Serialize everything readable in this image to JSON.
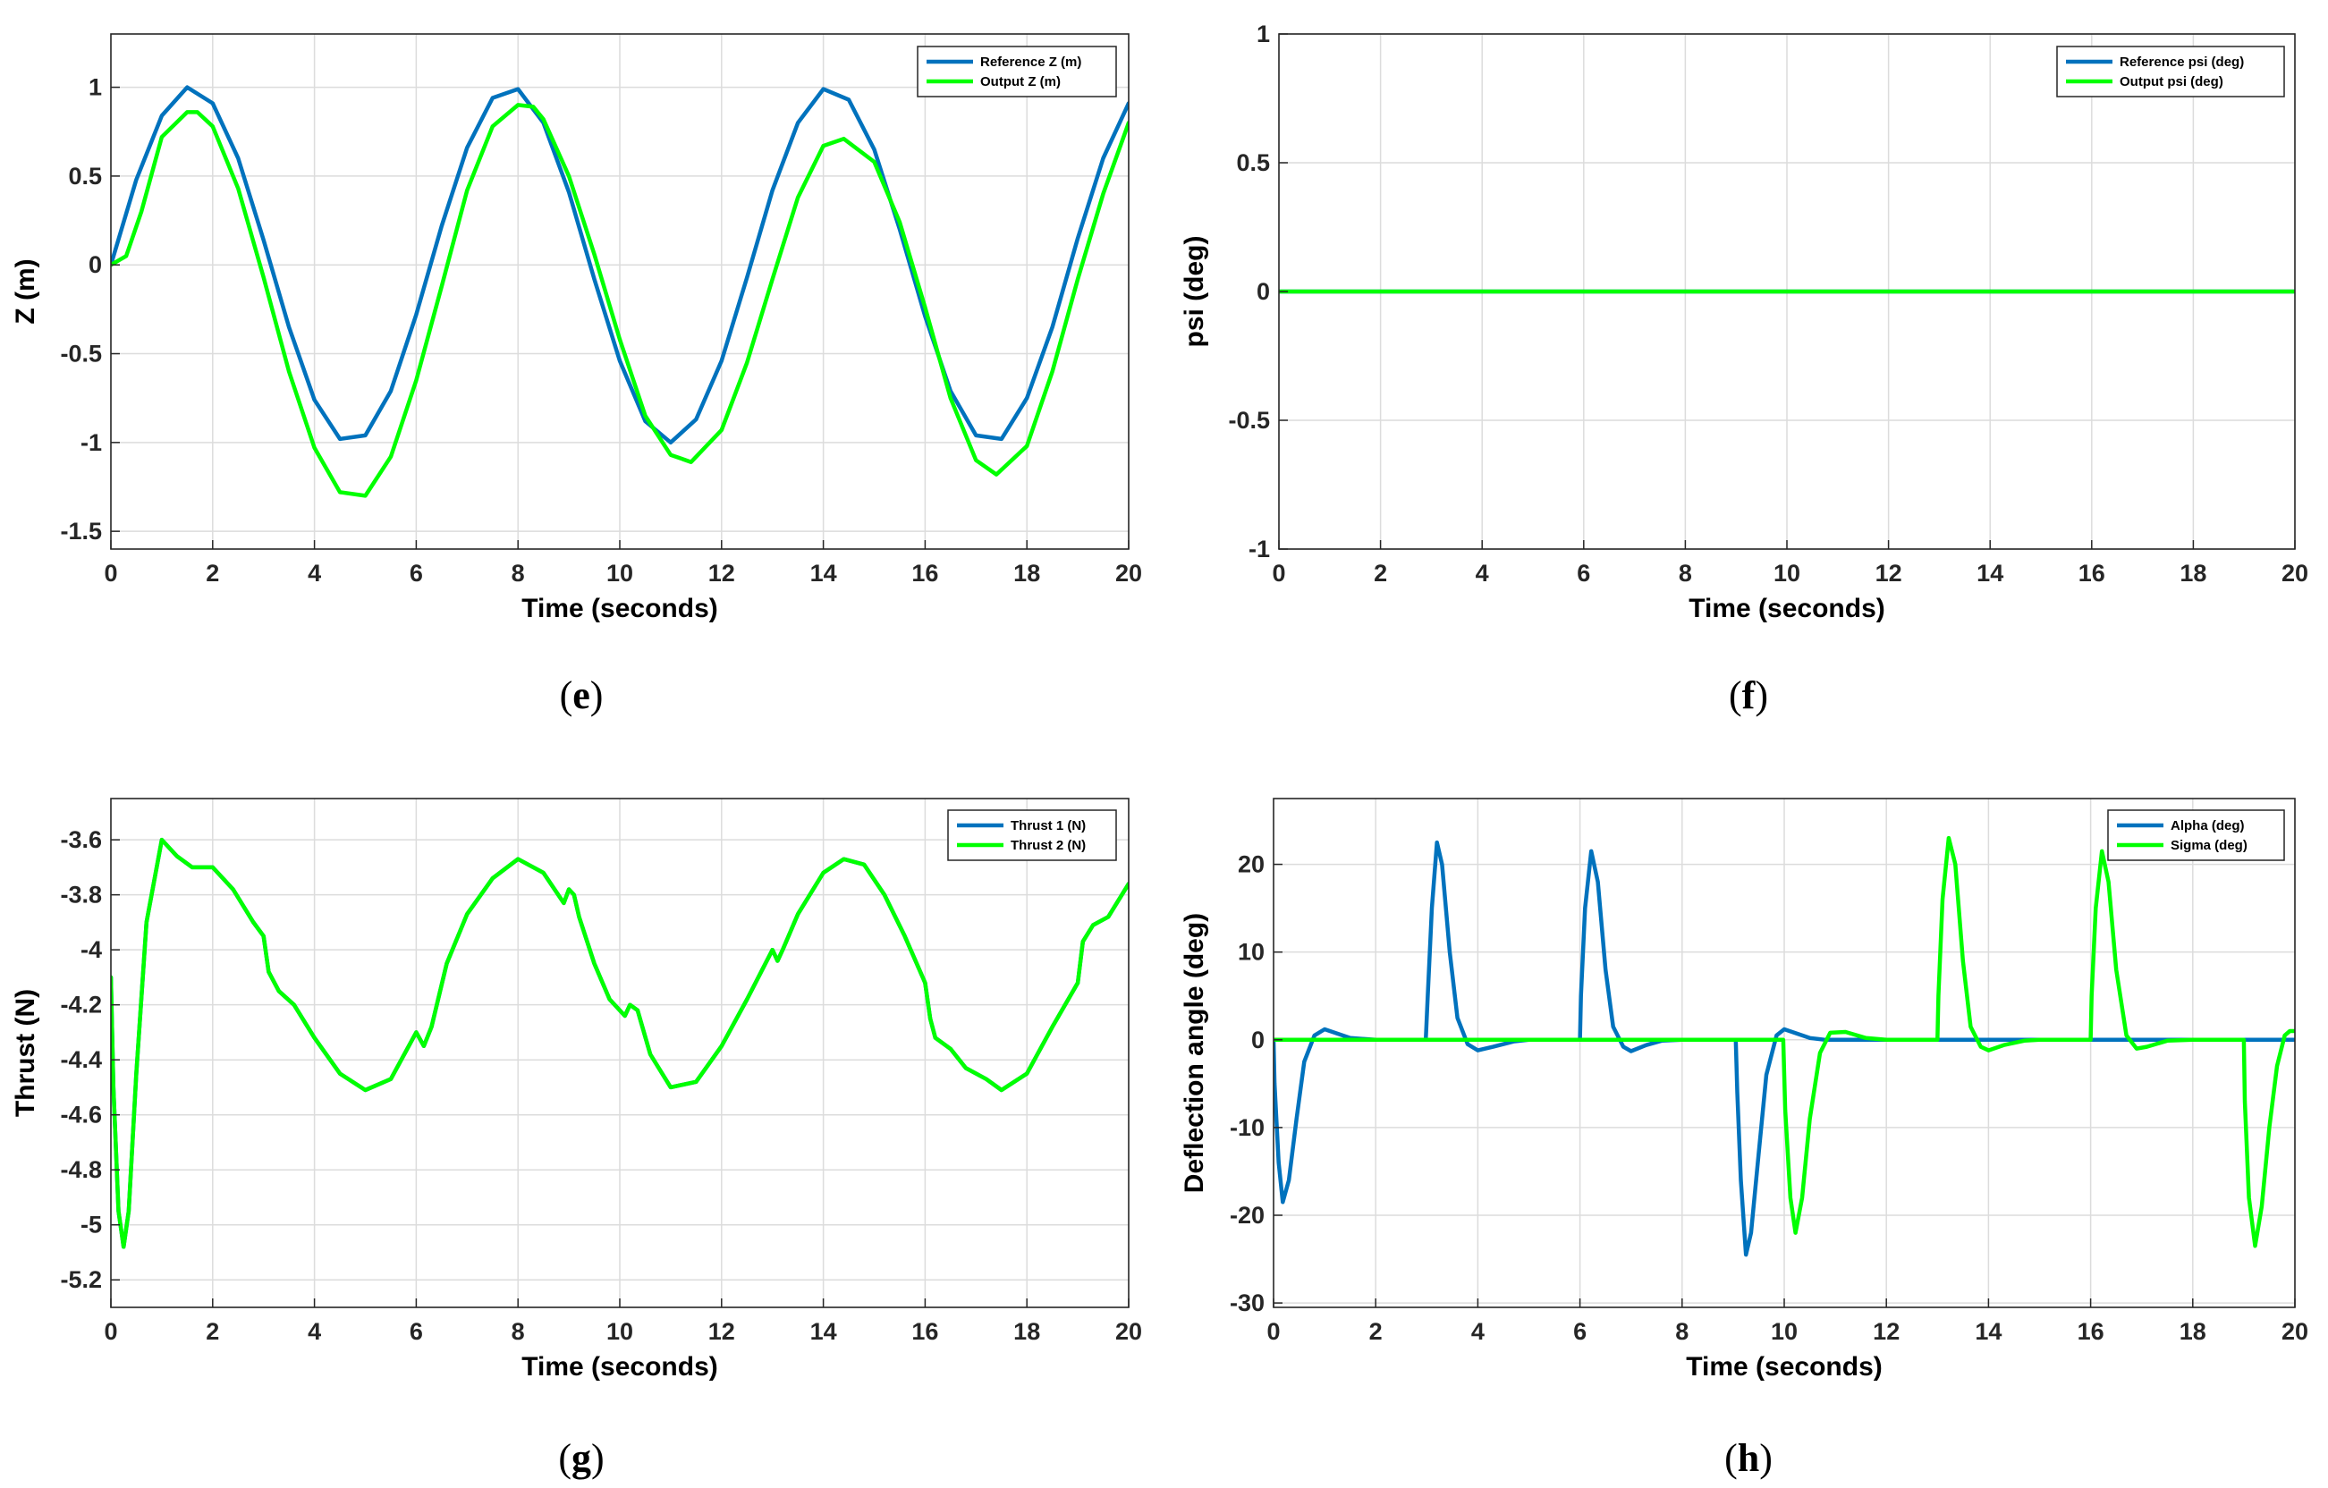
{
  "colors": {
    "blue": "#0072BD",
    "green": "#00FF00",
    "grid": "#DCDCDC",
    "axis": "#262626"
  },
  "chart_data": [
    {
      "id": "e",
      "type": "line",
      "caption": "e",
      "xlabel": "Time (seconds)",
      "ylabel": "Z (m)",
      "xlim": [
        0,
        20
      ],
      "ylim": [
        -1.6,
        1.3
      ],
      "xticks": [
        0,
        2,
        4,
        6,
        8,
        10,
        12,
        14,
        16,
        18,
        20
      ],
      "xtick_labels": [
        "0",
        "2",
        "4",
        "6",
        "8",
        "10",
        "12",
        "14",
        "16",
        "18",
        "20"
      ],
      "yticks": [
        -1.5,
        -1,
        -0.5,
        0,
        0.5,
        1
      ],
      "ytick_labels": [
        "-1.5",
        "-1",
        "-0.5",
        "0",
        "0.5",
        "1"
      ],
      "legend_position": "top-right",
      "series": [
        {
          "name": "Reference Z (m)",
          "color": "#0072BD",
          "x": [
            0,
            0.5,
            1,
            1.5,
            2,
            2.5,
            3,
            3.5,
            4,
            4.5,
            5,
            5.5,
            6,
            6.5,
            7,
            7.5,
            8,
            8.5,
            9,
            9.5,
            10,
            10.5,
            11,
            11.5,
            12,
            12.5,
            13,
            13.5,
            14,
            14.5,
            15,
            15.5,
            16,
            16.5,
            17,
            17.5,
            18,
            18.5,
            19,
            19.5,
            20
          ],
          "y": [
            0,
            0.48,
            0.84,
            1.0,
            0.91,
            0.6,
            0.14,
            -0.35,
            -0.76,
            -0.98,
            -0.96,
            -0.71,
            -0.28,
            0.22,
            0.66,
            0.94,
            0.99,
            0.8,
            0.41,
            -0.08,
            -0.54,
            -0.88,
            -1.0,
            -0.87,
            -0.54,
            -0.07,
            0.42,
            0.8,
            0.99,
            0.93,
            0.65,
            0.2,
            -0.29,
            -0.71,
            -0.96,
            -0.98,
            -0.75,
            -0.35,
            0.15,
            0.6,
            0.91
          ]
        },
        {
          "name": "Output Z (m)",
          "color": "#00FF00",
          "x": [
            0,
            0.3,
            0.6,
            1,
            1.5,
            1.7,
            2,
            2.5,
            3,
            3.5,
            4,
            4.5,
            5,
            5.5,
            6,
            6.5,
            7,
            7.5,
            8,
            8.3,
            8.5,
            9,
            9.5,
            10,
            10.5,
            11,
            11.4,
            12,
            12.5,
            13,
            13.5,
            14,
            14.4,
            15,
            15.5,
            16,
            16.5,
            17,
            17.4,
            18,
            18.5,
            19,
            19.5,
            20
          ],
          "y": [
            0,
            0.05,
            0.3,
            0.72,
            0.86,
            0.86,
            0.78,
            0.43,
            -0.07,
            -0.6,
            -1.03,
            -1.28,
            -1.3,
            -1.08,
            -0.65,
            -0.12,
            0.42,
            0.78,
            0.9,
            0.89,
            0.82,
            0.5,
            0.06,
            -0.42,
            -0.85,
            -1.07,
            -1.11,
            -0.93,
            -0.55,
            -0.08,
            0.38,
            0.67,
            0.71,
            0.58,
            0.24,
            -0.24,
            -0.75,
            -1.1,
            -1.18,
            -1.02,
            -0.6,
            -0.08,
            0.4,
            0.8
          ]
        }
      ]
    },
    {
      "id": "f",
      "type": "line",
      "caption": "f",
      "xlabel": "Time (seconds)",
      "ylabel": "psi (deg)",
      "xlim": [
        0,
        20
      ],
      "ylim": [
        -1,
        1
      ],
      "xticks": [
        0,
        2,
        4,
        6,
        8,
        10,
        12,
        14,
        16,
        18,
        20
      ],
      "xtick_labels": [
        "0",
        "2",
        "4",
        "6",
        "8",
        "10",
        "12",
        "14",
        "16",
        "18",
        "20"
      ],
      "yticks": [
        -1,
        -0.5,
        0,
        0.5,
        1
      ],
      "ytick_labels": [
        "-1",
        "-0.5",
        "0",
        "0.5",
        "1"
      ],
      "legend_position": "top-right",
      "series": [
        {
          "name": "Reference psi (deg)",
          "color": "#0072BD",
          "x": [
            0,
            20
          ],
          "y": [
            0,
            0
          ]
        },
        {
          "name": "Output psi (deg)",
          "color": "#00FF00",
          "x": [
            0,
            20
          ],
          "y": [
            0,
            0
          ]
        }
      ]
    },
    {
      "id": "g",
      "type": "line",
      "caption": "g",
      "xlabel": "Time (seconds)",
      "ylabel": "Thrust (N)",
      "xlim": [
        0,
        20
      ],
      "ylim": [
        -5.3,
        -3.45
      ],
      "xticks": [
        0,
        2,
        4,
        6,
        8,
        10,
        12,
        14,
        16,
        18,
        20
      ],
      "xtick_labels": [
        "0",
        "2",
        "4",
        "6",
        "8",
        "10",
        "12",
        "14",
        "16",
        "18",
        "20"
      ],
      "yticks": [
        -5.2,
        -5,
        -4.8,
        -4.6,
        -4.4,
        -4.2,
        -4,
        -3.8,
        -3.6
      ],
      "ytick_labels": [
        "-5.2",
        "-5",
        "-4.8",
        "-4.6",
        "-4.4",
        "-4.2",
        "-4",
        "-3.8",
        "-3.6"
      ],
      "legend_position": "top-right",
      "series": [
        {
          "name": "Thrust 1 (N)",
          "color": "#0072BD",
          "x": [
            0,
            0.05,
            0.15,
            0.25,
            0.35,
            0.5,
            0.7,
            1,
            1.3,
            1.6,
            2,
            2.4,
            2.8,
            3,
            3.1,
            3.3,
            3.6,
            4,
            4.5,
            5,
            5.5,
            6,
            6.15,
            6.3,
            6.6,
            7,
            7.5,
            8,
            8.5,
            8.9,
            9,
            9.1,
            9.2,
            9.5,
            9.8,
            10.1,
            10.2,
            10.35,
            10.6,
            11,
            11.5,
            12,
            12.5,
            13,
            13.1,
            13.2,
            13.5,
            14,
            14.4,
            14.8,
            15.2,
            15.6,
            16,
            16.1,
            16.2,
            16.5,
            16.8,
            17.2,
            17.5,
            18,
            18.5,
            19,
            19.1,
            19.3,
            19.6,
            20
          ],
          "y": [
            -4.1,
            -4.5,
            -4.95,
            -5.08,
            -4.95,
            -4.45,
            -3.9,
            -3.6,
            -3.66,
            -3.7,
            -3.7,
            -3.78,
            -3.9,
            -3.95,
            -4.08,
            -4.15,
            -4.2,
            -4.32,
            -4.45,
            -4.51,
            -4.47,
            -4.3,
            -4.35,
            -4.28,
            -4.05,
            -3.87,
            -3.74,
            -3.67,
            -3.72,
            -3.83,
            -3.78,
            -3.8,
            -3.88,
            -4.05,
            -4.18,
            -4.24,
            -4.2,
            -4.22,
            -4.38,
            -4.5,
            -4.48,
            -4.35,
            -4.18,
            -4.0,
            -4.04,
            -4.0,
            -3.87,
            -3.72,
            -3.67,
            -3.69,
            -3.8,
            -3.95,
            -4.12,
            -4.25,
            -4.32,
            -4.36,
            -4.43,
            -4.47,
            -4.51,
            -4.45,
            -4.28,
            -4.12,
            -3.97,
            -3.91,
            -3.88,
            -3.76
          ]
        },
        {
          "name": "Thrust 2 (N)",
          "color": "#00FF00",
          "x": [
            0,
            0.05,
            0.15,
            0.25,
            0.35,
            0.5,
            0.7,
            1,
            1.3,
            1.6,
            2,
            2.4,
            2.8,
            3,
            3.1,
            3.3,
            3.6,
            4,
            4.5,
            5,
            5.5,
            6,
            6.15,
            6.3,
            6.6,
            7,
            7.5,
            8,
            8.5,
            8.9,
            9,
            9.1,
            9.2,
            9.5,
            9.8,
            10.1,
            10.2,
            10.35,
            10.6,
            11,
            11.5,
            12,
            12.5,
            13,
            13.1,
            13.2,
            13.5,
            14,
            14.4,
            14.8,
            15.2,
            15.6,
            16,
            16.1,
            16.2,
            16.5,
            16.8,
            17.2,
            17.5,
            18,
            18.5,
            19,
            19.1,
            19.3,
            19.6,
            20
          ],
          "y": [
            -4.1,
            -4.5,
            -4.95,
            -5.08,
            -4.95,
            -4.45,
            -3.9,
            -3.6,
            -3.66,
            -3.7,
            -3.7,
            -3.78,
            -3.9,
            -3.95,
            -4.08,
            -4.15,
            -4.2,
            -4.32,
            -4.45,
            -4.51,
            -4.47,
            -4.3,
            -4.35,
            -4.28,
            -4.05,
            -3.87,
            -3.74,
            -3.67,
            -3.72,
            -3.83,
            -3.78,
            -3.8,
            -3.88,
            -4.05,
            -4.18,
            -4.24,
            -4.2,
            -4.22,
            -4.38,
            -4.5,
            -4.48,
            -4.35,
            -4.18,
            -4.0,
            -4.04,
            -4.0,
            -3.87,
            -3.72,
            -3.67,
            -3.69,
            -3.8,
            -3.95,
            -4.12,
            -4.25,
            -4.32,
            -4.36,
            -4.43,
            -4.47,
            -4.51,
            -4.45,
            -4.28,
            -4.12,
            -3.97,
            -3.91,
            -3.88,
            -3.76
          ]
        }
      ]
    },
    {
      "id": "h",
      "type": "line",
      "caption": "h",
      "xlabel": "Time (seconds)",
      "ylabel": "Deflection angle (deg)",
      "xlim": [
        0,
        20
      ],
      "ylim": [
        -30.5,
        27.5
      ],
      "xticks": [
        0,
        2,
        4,
        6,
        8,
        10,
        12,
        14,
        16,
        18,
        20
      ],
      "xtick_labels": [
        "0",
        "2",
        "4",
        "6",
        "8",
        "10",
        "12",
        "14",
        "16",
        "18",
        "20"
      ],
      "yticks": [
        -30,
        -20,
        -10,
        0,
        10,
        20
      ],
      "ytick_labels": [
        "-30",
        "-20",
        "-10",
        "0",
        "10",
        "20"
      ],
      "legend_position": "top-right",
      "series": [
        {
          "name": "Alpha (deg)",
          "color": "#0072BD",
          "x": [
            0,
            0.02,
            0.1,
            0.18,
            0.3,
            0.45,
            0.6,
            0.8,
            1.0,
            1.2,
            1.5,
            2,
            2.5,
            2.98,
            3.02,
            3.1,
            3.2,
            3.3,
            3.45,
            3.6,
            3.8,
            4.0,
            4.3,
            4.7,
            5,
            5.5,
            6.0,
            6.02,
            6.1,
            6.22,
            6.35,
            6.5,
            6.65,
            6.85,
            7.0,
            7.3,
            7.6,
            8,
            8.5,
            9.05,
            9.08,
            9.15,
            9.25,
            9.35,
            9.5,
            9.65,
            9.85,
            10.0,
            10.2,
            10.5,
            10.8,
            11,
            11.5,
            12,
            20
          ],
          "y": [
            0,
            -5,
            -14,
            -18.5,
            -16,
            -9,
            -2.5,
            0.5,
            1.2,
            0.8,
            0.2,
            0,
            0,
            0,
            5,
            15,
            22.5,
            20,
            10,
            2.5,
            -0.5,
            -1.2,
            -0.8,
            -0.2,
            0,
            0,
            0,
            5,
            15,
            21.5,
            18,
            8,
            1.5,
            -0.8,
            -1.3,
            -0.6,
            -0.1,
            0,
            0,
            0,
            -6,
            -16,
            -24.5,
            -22,
            -13,
            -4,
            0.5,
            1.2,
            0.8,
            0.2,
            0,
            0,
            0,
            0,
            0
          ]
        },
        {
          "name": "Sigma (deg)",
          "color": "#00FF00",
          "x": [
            0,
            9.98,
            10.02,
            10.12,
            10.22,
            10.35,
            10.5,
            10.7,
            10.9,
            11.2,
            11.6,
            12,
            13.0,
            13.02,
            13.1,
            13.22,
            13.35,
            13.5,
            13.65,
            13.85,
            14.0,
            14.3,
            14.7,
            15,
            16.0,
            16.02,
            16.1,
            16.22,
            16.35,
            16.5,
            16.7,
            16.9,
            17.1,
            17.5,
            18,
            19.0,
            19.02,
            19.1,
            19.22,
            19.35,
            19.5,
            19.65,
            19.8,
            19.9,
            20
          ],
          "y": [
            0,
            0,
            -8,
            -18,
            -22,
            -18,
            -9,
            -1.5,
            0.8,
            0.9,
            0.2,
            0,
            0,
            5,
            16,
            23,
            20,
            9,
            1.5,
            -0.8,
            -1.2,
            -0.6,
            -0.1,
            0,
            0,
            5,
            15,
            21.5,
            18,
            8,
            0.5,
            -1.0,
            -0.8,
            -0.1,
            0,
            0,
            -7,
            -18,
            -23.5,
            -19,
            -10,
            -3,
            0.5,
            1.0,
            1.0
          ]
        }
      ]
    }
  ]
}
